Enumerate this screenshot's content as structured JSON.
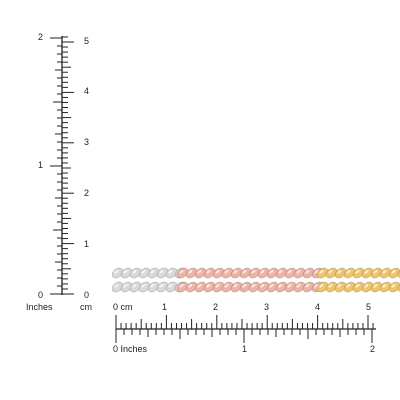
{
  "vertical_ruler": {
    "inch_labels": [
      "0",
      "1",
      "2"
    ],
    "cm_labels": [
      "1",
      "2",
      "3",
      "4",
      "5"
    ],
    "inch_zero": "0",
    "unit_inches": "Inches",
    "unit_cm": "cm"
  },
  "horizontal_ruler": {
    "cm_start": "0 cm",
    "cm_labels": [
      "1",
      "2",
      "3",
      "4",
      "5"
    ],
    "inch_start": "0 Inches",
    "inch_labels": [
      "1",
      "2"
    ]
  },
  "chain": {
    "segments": [
      {
        "name": "silver",
        "color": "#d9d9d9"
      },
      {
        "name": "rose",
        "color": "#efb3a5"
      },
      {
        "name": "gold",
        "color": "#efc56a"
      }
    ]
  }
}
